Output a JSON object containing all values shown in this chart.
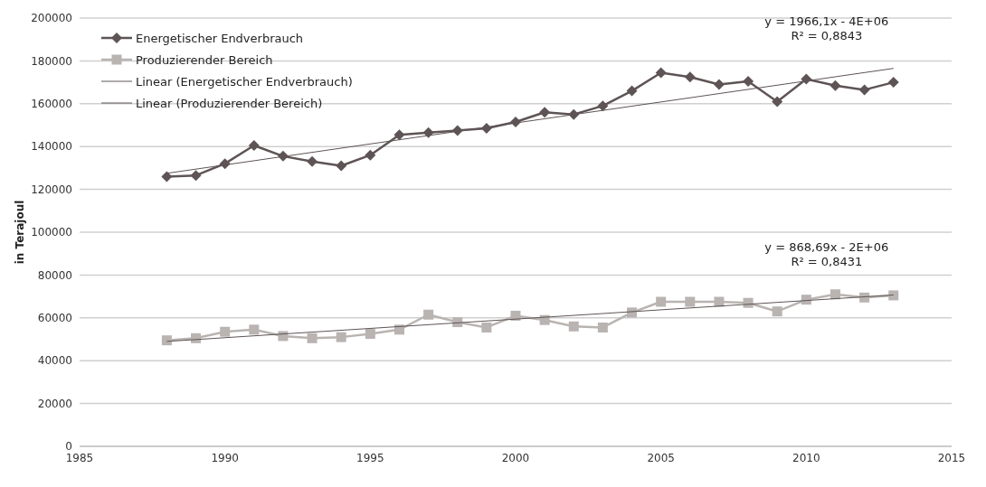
{
  "chart_data": {
    "type": "line",
    "ylabel": "in Terajoul",
    "xlim": [
      1985,
      2015
    ],
    "xticks": [
      1985,
      1990,
      1995,
      2000,
      2005,
      2010,
      2015
    ],
    "ylim": [
      0,
      200000
    ],
    "yticks": [
      0,
      20000,
      40000,
      60000,
      80000,
      100000,
      120000,
      140000,
      160000,
      180000,
      200000
    ],
    "grid": "y",
    "legend": "top left",
    "x": [
      1988,
      1989,
      1990,
      1991,
      1992,
      1993,
      1994,
      1995,
      1996,
      1997,
      1998,
      1999,
      2000,
      2001,
      2002,
      2003,
      2004,
      2005,
      2006,
      2007,
      2008,
      2009,
      2010,
      2011,
      2012,
      2013
    ],
    "series": [
      {
        "name": "Energetischer Endverbrauch",
        "color": "#5e5455",
        "marker": "diamond",
        "values": [
          126000,
          126500,
          132000,
          140500,
          135500,
          133000,
          131000,
          136000,
          145500,
          146500,
          147500,
          148500,
          151500,
          156000,
          155000,
          159000,
          166000,
          174500,
          172500,
          169000,
          170500,
          161000,
          171500,
          168500,
          166500,
          170000
        ]
      },
      {
        "name": "Produzierender Bereich",
        "color": "#b9b4b1",
        "marker": "square",
        "values": [
          49500,
          50500,
          53500,
          54500,
          51500,
          50500,
          51000,
          52500,
          54500,
          61500,
          58000,
          55500,
          61000,
          59000,
          56000,
          55500,
          62500,
          67500,
          67500,
          67500,
          67000,
          63000,
          68500,
          71000,
          69500,
          70500
        ]
      },
      {
        "name": "Linear (Energetischer Endverbrauch)",
        "color": "#5e5455",
        "marker": "none",
        "values": [
          127500,
          null,
          null,
          null,
          null,
          null,
          null,
          null,
          null,
          null,
          null,
          null,
          null,
          null,
          null,
          null,
          null,
          null,
          null,
          null,
          null,
          null,
          null,
          null,
          null,
          176500
        ]
      },
      {
        "name": "Linear (Produzierender Bereich)",
        "color": "#5e5455",
        "marker": "none",
        "values": [
          49000,
          null,
          null,
          null,
          null,
          null,
          null,
          null,
          null,
          null,
          null,
          null,
          null,
          null,
          null,
          null,
          null,
          null,
          null,
          null,
          null,
          null,
          null,
          null,
          null,
          70700
        ]
      }
    ],
    "annotations": [
      "y = 1966,1x - 4E+06",
      "R² = 0,8843",
      "y = 868,69x - 2E+06",
      "R² = 0,8431"
    ]
  }
}
